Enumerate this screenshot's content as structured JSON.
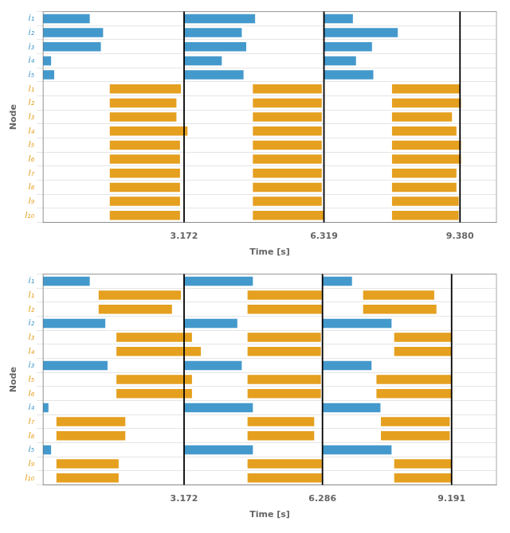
{
  "chart_data": [
    {
      "type": "bar",
      "orientation": "horizontal",
      "xlabel": "Time [s]",
      "ylabel": "Node",
      "categories": [
        "i₁",
        "i₂",
        "i₃",
        "i₄",
        "i₅",
        "l₁",
        "l₂",
        "l₃",
        "l₄",
        "l₅",
        "l₆",
        "l₇",
        "l₈",
        "l₉",
        "l₁₀"
      ],
      "colors": [
        "#4499CC",
        "#4499CC",
        "#4499CC",
        "#4499CC",
        "#4499CC",
        "#E5A020",
        "#E5A020",
        "#E5A020",
        "#E5A020",
        "#E5A020",
        "#E5A020",
        "#E5A020",
        "#E5A020",
        "#E5A020",
        "#E5A020"
      ],
      "values": [
        [
          [
            0.0,
            1.05
          ],
          [
            3.172,
            4.77
          ],
          [
            6.319,
            6.97
          ]
        ],
        [
          [
            0.0,
            1.35
          ],
          [
            3.172,
            4.47
          ],
          [
            6.319,
            7.98
          ]
        ],
        [
          [
            0.0,
            1.3
          ],
          [
            3.172,
            4.57
          ],
          [
            6.319,
            7.4
          ]
        ],
        [
          [
            0.0,
            0.18
          ],
          [
            3.172,
            4.02
          ],
          [
            6.319,
            7.04
          ]
        ],
        [
          [
            0.0,
            0.25
          ],
          [
            3.172,
            4.51
          ],
          [
            6.319,
            7.43
          ]
        ],
        [
          [
            1.5,
            3.1
          ],
          [
            4.72,
            6.27
          ],
          [
            7.85,
            9.38
          ]
        ],
        [
          [
            1.5,
            3.0
          ],
          [
            4.72,
            6.27
          ],
          [
            7.85,
            9.4
          ]
        ],
        [
          [
            1.5,
            3.0
          ],
          [
            4.72,
            6.27
          ],
          [
            7.85,
            9.2
          ]
        ],
        [
          [
            1.5,
            3.25
          ],
          [
            4.72,
            6.27
          ],
          [
            7.85,
            9.3
          ]
        ],
        [
          [
            1.5,
            3.08
          ],
          [
            4.72,
            6.27
          ],
          [
            7.85,
            9.4
          ]
        ],
        [
          [
            1.5,
            3.08
          ],
          [
            4.72,
            6.27
          ],
          [
            7.85,
            9.4
          ]
        ],
        [
          [
            1.5,
            3.08
          ],
          [
            4.72,
            6.27
          ],
          [
            7.85,
            9.3
          ]
        ],
        [
          [
            1.5,
            3.08
          ],
          [
            4.72,
            6.27
          ],
          [
            7.85,
            9.3
          ]
        ],
        [
          [
            1.5,
            3.08
          ],
          [
            4.72,
            6.27
          ],
          [
            7.85,
            9.35
          ]
        ],
        [
          [
            1.5,
            3.08
          ],
          [
            4.72,
            6.32
          ],
          [
            7.85,
            9.35
          ]
        ]
      ],
      "vlines": [
        3.172,
        6.319,
        9.38
      ],
      "xlim": [
        0,
        10.2
      ],
      "xticks": [
        3.172,
        6.319,
        {
          "value": 9.38,
          "label": "9.380"
        }
      ],
      "grid": "y"
    },
    {
      "type": "bar",
      "orientation": "horizontal",
      "xlabel": "Time [s]",
      "ylabel": "Node",
      "categories": [
        "i₁",
        "l₁",
        "l₂",
        "i₂",
        "l₃",
        "l₄",
        "i₃",
        "l₅",
        "l₆",
        "i₄",
        "l₇",
        "l₈",
        "i₅",
        "l₉",
        "l₁₀"
      ],
      "colors": [
        "#4499CC",
        "#E5A020",
        "#E5A020",
        "#4499CC",
        "#E5A020",
        "#E5A020",
        "#4499CC",
        "#E5A020",
        "#E5A020",
        "#4499CC",
        "#E5A020",
        "#E5A020",
        "#4499CC",
        "#E5A020",
        "#E5A020"
      ],
      "values": [
        [
          [
            0.0,
            1.05
          ],
          [
            3.172,
            4.72
          ],
          [
            6.286,
            6.95
          ]
        ],
        [
          [
            1.25,
            3.1
          ],
          [
            4.6,
            6.27
          ],
          [
            7.2,
            8.8
          ]
        ],
        [
          [
            1.25,
            2.9
          ],
          [
            4.6,
            6.27
          ],
          [
            7.2,
            8.85
          ]
        ],
        [
          [
            0.0,
            1.4
          ],
          [
            3.172,
            4.37
          ],
          [
            6.286,
            7.84
          ]
        ],
        [
          [
            1.65,
            3.35
          ],
          [
            4.6,
            6.25
          ],
          [
            7.9,
            9.19
          ]
        ],
        [
          [
            1.65,
            3.55
          ],
          [
            4.6,
            6.25
          ],
          [
            7.9,
            9.19
          ]
        ],
        [
          [
            0.0,
            1.45
          ],
          [
            3.172,
            4.47
          ],
          [
            6.286,
            7.39
          ]
        ],
        [
          [
            1.65,
            3.35
          ],
          [
            4.6,
            6.25
          ],
          [
            7.5,
            9.19
          ]
        ],
        [
          [
            1.65,
            3.35
          ],
          [
            4.6,
            6.25
          ],
          [
            7.5,
            9.19
          ]
        ],
        [
          [
            0.0,
            0.12
          ],
          [
            3.172,
            4.72
          ],
          [
            6.286,
            7.59
          ]
        ],
        [
          [
            0.3,
            1.85
          ],
          [
            4.6,
            6.1
          ],
          [
            7.6,
            9.15
          ]
        ],
        [
          [
            0.3,
            1.85
          ],
          [
            4.6,
            6.1
          ],
          [
            7.6,
            9.15
          ]
        ],
        [
          [
            0.0,
            0.18
          ],
          [
            3.172,
            4.72
          ],
          [
            6.286,
            7.84
          ]
        ],
        [
          [
            0.3,
            1.7
          ],
          [
            4.6,
            6.27
          ],
          [
            7.9,
            9.19
          ]
        ],
        [
          [
            0.3,
            1.7
          ],
          [
            4.6,
            6.27
          ],
          [
            7.9,
            9.19
          ]
        ]
      ],
      "vlines": [
        3.172,
        6.286,
        9.191
      ],
      "xlim": [
        0,
        10.2
      ],
      "xticks": [
        3.172,
        6.286,
        9.191
      ],
      "grid": "y"
    }
  ]
}
